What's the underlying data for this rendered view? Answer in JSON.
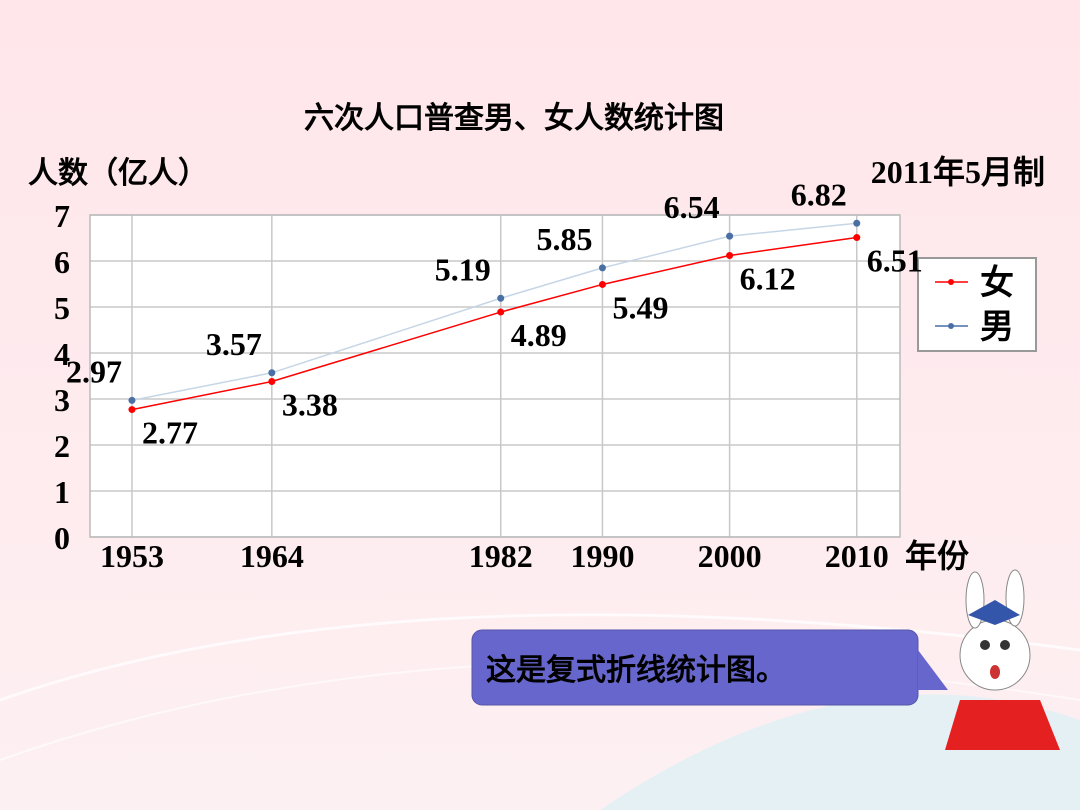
{
  "chart_data": {
    "type": "line",
    "title": "六次人口普查男、女人数统计图",
    "y_label": "人数（亿人）",
    "note": "2011年5月制",
    "x_label": "年份",
    "x": [
      1953,
      1964,
      1982,
      1990,
      2000,
      2010
    ],
    "series": [
      {
        "name": "女",
        "color": "#ff0000",
        "values": [
          2.77,
          3.38,
          4.89,
          5.49,
          6.12,
          6.51
        ]
      },
      {
        "name": "男",
        "color": "#4a6fa5",
        "values": [
          2.97,
          3.57,
          5.19,
          5.85,
          6.54,
          6.82
        ]
      }
    ],
    "xlim": [
      1949.7,
      2013.4
    ],
    "xticks": [
      1953,
      1964,
      1982,
      1990,
      2000,
      2010
    ],
    "ylim": [
      0,
      7
    ],
    "yticks": [
      0,
      1,
      2,
      3,
      4,
      5,
      6,
      7
    ],
    "grid": true,
    "legend": "right"
  },
  "speech": "这是复式折线统计图。"
}
